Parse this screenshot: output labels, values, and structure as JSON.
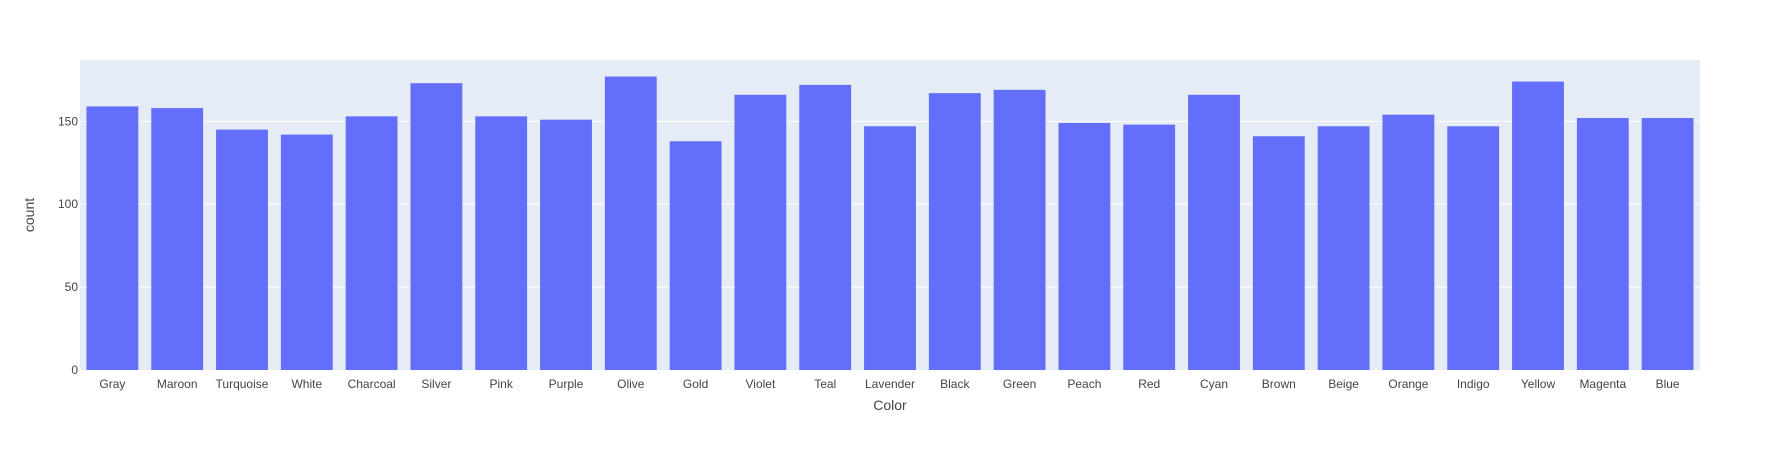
{
  "chart_data": {
    "type": "bar",
    "categories": [
      "Gray",
      "Maroon",
      "Turquoise",
      "White",
      "Charcoal",
      "Silver",
      "Pink",
      "Purple",
      "Olive",
      "Gold",
      "Violet",
      "Teal",
      "Lavender",
      "Black",
      "Green",
      "Peach",
      "Red",
      "Cyan",
      "Brown",
      "Beige",
      "Orange",
      "Indigo",
      "Yellow",
      "Magenta",
      "Blue"
    ],
    "values": [
      159,
      158,
      145,
      142,
      153,
      173,
      153,
      151,
      177,
      138,
      166,
      172,
      147,
      167,
      169,
      149,
      148,
      166,
      141,
      147,
      154,
      147,
      174,
      152,
      152
    ],
    "title": "",
    "xlabel": "Color",
    "ylabel": "count",
    "ylim": [
      0,
      187
    ],
    "yticks": [
      0,
      50,
      100,
      150
    ],
    "grid": true,
    "colors": {
      "bar": "#636efa",
      "plot_bg": "#e5ecf6",
      "grid": "#ffffff",
      "text": "#444444"
    }
  }
}
